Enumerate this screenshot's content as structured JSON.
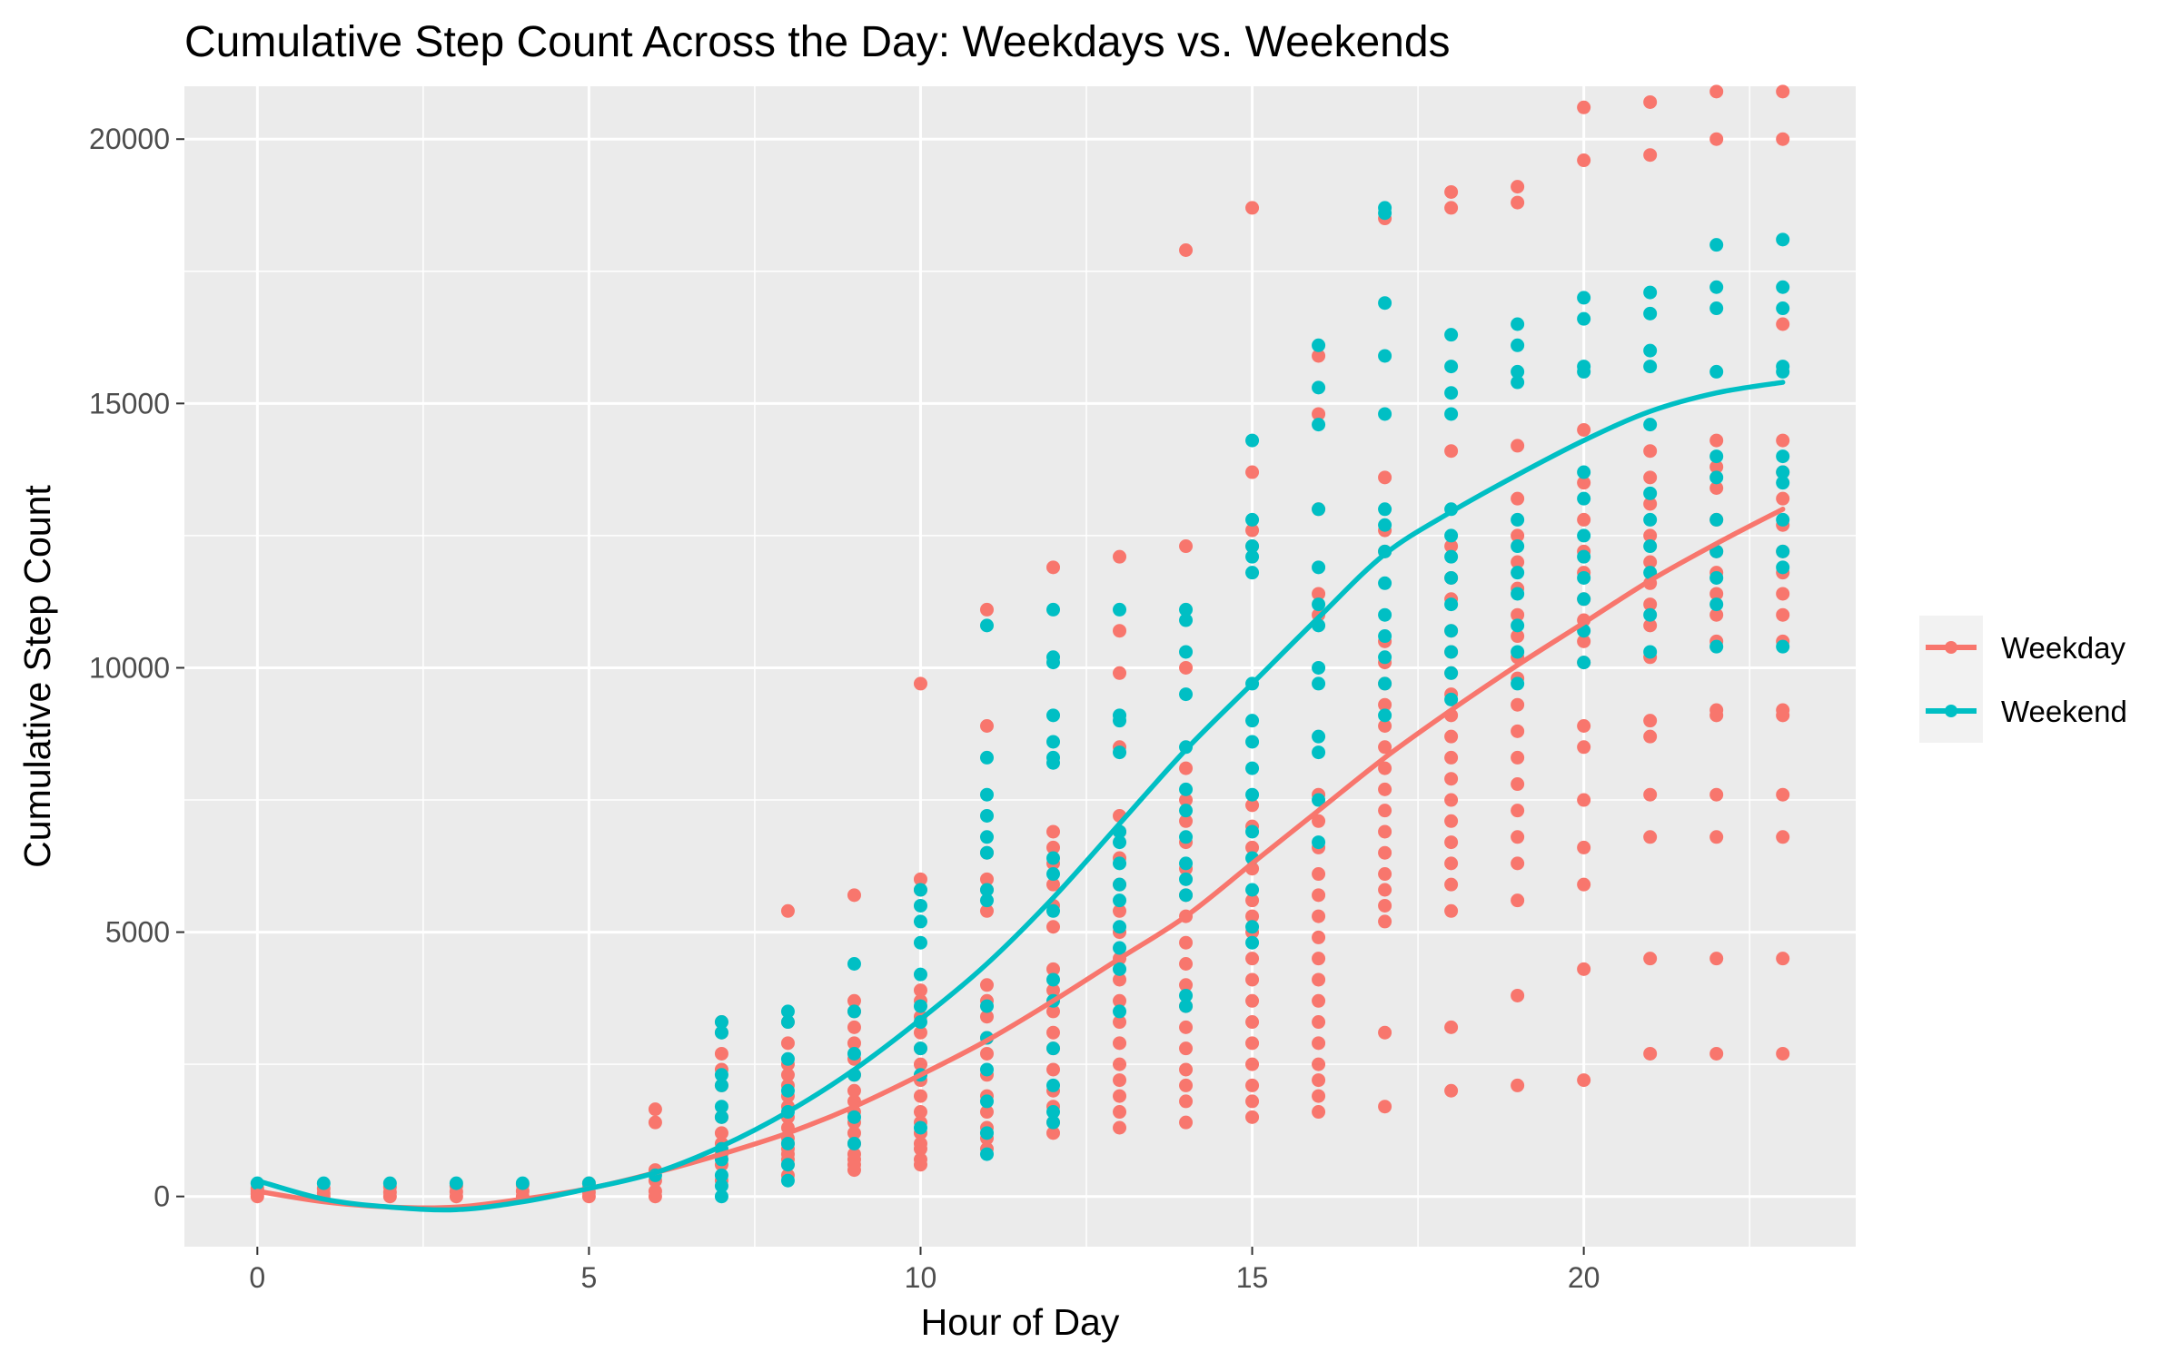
{
  "chart_data": {
    "type": "scatter",
    "title": "Cumulative Step Count Across the Day: Weekdays vs. Weekends",
    "xlabel": "Hour of Day",
    "ylabel": "Cumulative Step Count",
    "xlim": [
      -1.1,
      24.1
    ],
    "ylim": [
      -950,
      21000
    ],
    "x_ticks": [
      0,
      5,
      10,
      15,
      20
    ],
    "x_tick_labels": [
      "0",
      "5",
      "10",
      "15",
      "20"
    ],
    "y_ticks": [
      0,
      5000,
      10000,
      15000,
      20000
    ],
    "y_tick_labels": [
      "0",
      "5000",
      "10000",
      "15000",
      "20000"
    ],
    "grid": true,
    "legend_position": "right",
    "colors": {
      "Weekday": "#F8766D",
      "Weekend": "#00BFC4",
      "panel_background": "#EBEBEB",
      "grid_line": "#FFFFFF"
    },
    "series": [
      {
        "name": "Weekday",
        "smooth": {
          "x": [
            0,
            1,
            2,
            3,
            4,
            5,
            6,
            7,
            8,
            9,
            10,
            11,
            12,
            13,
            14,
            15,
            16,
            17,
            18,
            19,
            20,
            21,
            22,
            23
          ],
          "y": [
            100,
            -100,
            -200,
            -200,
            -50,
            150,
            450,
            800,
            1200,
            1700,
            2300,
            2950,
            3700,
            4500,
            5300,
            6300,
            7300,
            8300,
            9200,
            10050,
            10850,
            11650,
            12350,
            13000
          ]
        },
        "points": {
          "0": [
            0,
            50,
            100,
            150
          ],
          "1": [
            0,
            60,
            150
          ],
          "2": [
            0,
            80,
            180
          ],
          "3": [
            0,
            90,
            200
          ],
          "4": [
            0,
            100,
            220
          ],
          "5": [
            0,
            80,
            160,
            250
          ],
          "6": [
            0,
            100,
            300,
            500,
            1400,
            1650
          ],
          "7": [
            300,
            600,
            800,
            1000,
            1200,
            1500,
            2100,
            2400,
            2700,
            3100,
            3300
          ],
          "8": [
            400,
            600,
            700,
            800,
            900,
            1000,
            1100,
            1300,
            1500,
            1700,
            1900,
            2100,
            2300,
            2500,
            2900,
            3300,
            5400
          ],
          "9": [
            500,
            600,
            700,
            800,
            1000,
            1200,
            1400,
            1600,
            1800,
            2000,
            2300,
            2600,
            2900,
            3200,
            3500,
            3700,
            5700
          ],
          "10": [
            600,
            700,
            900,
            1000,
            1200,
            1400,
            1600,
            1900,
            2200,
            2500,
            2800,
            3100,
            3400,
            3700,
            3900,
            5800,
            6000,
            9700
          ],
          "11": [
            900,
            1100,
            1300,
            1600,
            1900,
            2300,
            2700,
            3000,
            3400,
            3700,
            4000,
            5400,
            5800,
            6000,
            6500,
            8900,
            11100
          ],
          "12": [
            1200,
            1400,
            1700,
            2000,
            2400,
            2800,
            3100,
            3500,
            3900,
            4300,
            5100,
            5500,
            5900,
            6300,
            6600,
            6900,
            11900
          ],
          "13": [
            1300,
            1600,
            1900,
            2200,
            2500,
            2900,
            3300,
            3700,
            4100,
            4500,
            5000,
            5400,
            5900,
            6400,
            6900,
            7200,
            8500,
            9900,
            10700,
            12100
          ],
          "14": [
            1400,
            1800,
            2100,
            2400,
            2800,
            3200,
            3600,
            4000,
            4400,
            4800,
            5300,
            5700,
            6200,
            6700,
            7100,
            7500,
            8100,
            10000,
            12300,
            17900
          ],
          "15": [
            1500,
            1800,
            2100,
            2500,
            2900,
            3300,
            3700,
            4100,
            4500,
            5000,
            5300,
            5600,
            6200,
            6600,
            7000,
            7400,
            12300,
            12600,
            13700,
            18700
          ],
          "16": [
            1600,
            1900,
            2200,
            2500,
            2900,
            3300,
            3700,
            4100,
            4500,
            4900,
            5300,
            5700,
            6100,
            6600,
            7100,
            7600,
            11000,
            11400,
            13000,
            14800,
            15900
          ],
          "17": [
            1700,
            3100,
            5200,
            5500,
            5800,
            6100,
            6500,
            6900,
            7300,
            7700,
            8100,
            8500,
            8900,
            9300,
            9700,
            10100,
            10500,
            12200,
            12600,
            13600,
            18500
          ],
          "18": [
            2000,
            3200,
            5400,
            5900,
            6300,
            6700,
            7100,
            7500,
            7900,
            8300,
            8700,
            9100,
            9500,
            9900,
            10300,
            10700,
            11300,
            11700,
            12300,
            14100,
            18700,
            19000
          ],
          "19": [
            2100,
            3800,
            5600,
            6300,
            6800,
            7300,
            7800,
            8300,
            8800,
            9300,
            9800,
            10200,
            10600,
            11000,
            11500,
            12000,
            12500,
            13200,
            14200,
            18800,
            19100
          ],
          "20": [
            2200,
            4300,
            5900,
            6600,
            7500,
            8500,
            8900,
            10100,
            10500,
            10900,
            11300,
            11800,
            12200,
            12800,
            13500,
            14500,
            19600,
            20600
          ],
          "21": [
            2700,
            4500,
            6800,
            7600,
            8700,
            9000,
            10200,
            10800,
            11200,
            11600,
            12000,
            12500,
            13100,
            13600,
            14100,
            19700,
            20700
          ],
          "22": [
            2700,
            4500,
            6800,
            7600,
            9100,
            9200,
            10500,
            11000,
            11400,
            11800,
            12200,
            12800,
            13400,
            13800,
            14300,
            20000,
            20900
          ],
          "23": [
            2700,
            4500,
            6800,
            7600,
            9100,
            9200,
            10500,
            11000,
            11400,
            11800,
            12200,
            12700,
            13200,
            13700,
            14300,
            16500,
            20000,
            20900
          ]
        }
      },
      {
        "name": "Weekend",
        "smooth": {
          "x": [
            0,
            1,
            2,
            3,
            4,
            5,
            6,
            7,
            8,
            9,
            10,
            11,
            12,
            13,
            14,
            15,
            16,
            17,
            18,
            19,
            20,
            21,
            22,
            23
          ],
          "y": [
            300,
            -50,
            -200,
            -250,
            -100,
            150,
            450,
            950,
            1600,
            2400,
            3350,
            4400,
            5650,
            7050,
            8450,
            9700,
            10950,
            12150,
            12950,
            13650,
            14300,
            14850,
            15200,
            15400
          ]
        },
        "points": {
          "0": [
            250
          ],
          "1": [
            250
          ],
          "2": [
            250
          ],
          "3": [
            250
          ],
          "4": [
            250
          ],
          "5": [
            250
          ],
          "6": [
            400
          ],
          "7": [
            0,
            200,
            400,
            700,
            900,
            1500,
            1700,
            2100,
            2300,
            3100,
            3300
          ],
          "8": [
            300,
            600,
            1000,
            1600,
            2000,
            2600,
            3300,
            3500
          ],
          "9": [
            1000,
            1500,
            2300,
            2700,
            3500,
            4400
          ],
          "10": [
            1300,
            2300,
            2800,
            3300,
            3600,
            4200,
            4800,
            5200,
            5500,
            5800
          ],
          "11": [
            800,
            1200,
            1800,
            2400,
            3000,
            3600,
            5600,
            5800,
            6500,
            6800,
            7200,
            7600,
            8300,
            10800
          ],
          "12": [
            1400,
            1600,
            2100,
            2800,
            3700,
            4100,
            5400,
            6100,
            6400,
            8200,
            8300,
            8600,
            9100,
            10100,
            10200,
            11100
          ],
          "13": [
            3500,
            4300,
            4700,
            5100,
            5600,
            5900,
            6300,
            6700,
            6900,
            8400,
            9000,
            9100,
            11100
          ],
          "14": [
            3600,
            3800,
            5700,
            6000,
            6300,
            6800,
            7300,
            7700,
            8500,
            9500,
            10300,
            10900,
            11100
          ],
          "15": [
            4800,
            5100,
            5800,
            6400,
            6900,
            7600,
            8100,
            8600,
            9000,
            9700,
            11800,
            12100,
            12300,
            12800,
            14300
          ],
          "16": [
            6700,
            7500,
            8400,
            8700,
            9700,
            10000,
            10800,
            11200,
            11900,
            13000,
            14600,
            15300,
            16100
          ],
          "17": [
            9100,
            9700,
            10200,
            10600,
            11000,
            11600,
            12200,
            12700,
            13000,
            14800,
            15900,
            16900,
            18600,
            18700
          ],
          "18": [
            9400,
            9900,
            10300,
            10700,
            11200,
            11700,
            12100,
            12500,
            13000,
            14800,
            15200,
            15700,
            16300
          ],
          "19": [
            9700,
            10300,
            10800,
            11400,
            11800,
            12300,
            12800,
            15400,
            15600,
            16100,
            16500
          ],
          "20": [
            10100,
            10700,
            11300,
            11700,
            12100,
            12500,
            13200,
            13700,
            15600,
            15700,
            16600,
            17000
          ],
          "21": [
            10300,
            11000,
            11800,
            12300,
            12800,
            13300,
            14600,
            15700,
            16000,
            16700,
            17100
          ],
          "22": [
            10400,
            11200,
            11700,
            12200,
            12800,
            13600,
            14000,
            15600,
            16800,
            17200,
            18000
          ],
          "23": [
            10400,
            11900,
            12200,
            12800,
            13500,
            13700,
            14000,
            15600,
            15700,
            16800,
            17200,
            18100
          ]
        }
      }
    ]
  }
}
